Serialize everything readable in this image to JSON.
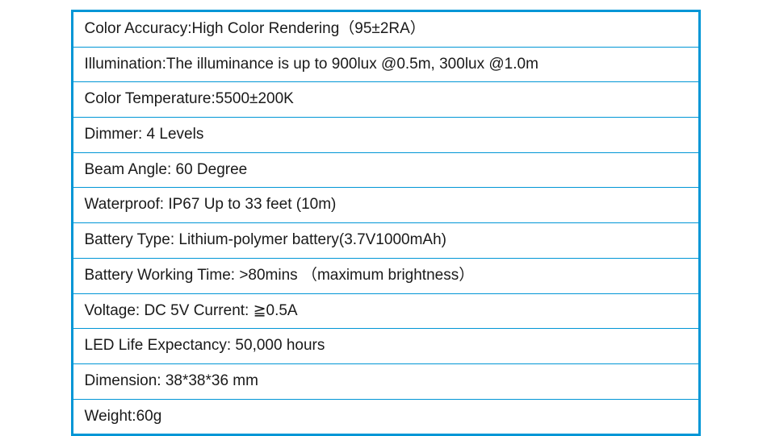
{
  "table": {
    "border_color": "#0096d6",
    "border_width": 3,
    "row_border_color": "#0096d6",
    "background_color": "#ffffff",
    "text_color": "#1a1a1a",
    "font_size": 19,
    "rows": [
      "Color Accuracy:High Color Rendering（95±2RA）",
      "Illumination:The illuminance is up to 900lux @0.5m, 300lux @1.0m",
      "Color Temperature:5500±200K",
      "Dimmer: 4 Levels",
      "Beam Angle: 60 Degree",
      "Waterproof: IP67 Up to 33 feet (10m)",
      "Battery Type: Lithium-polymer battery(3.7V1000mAh)",
      "Battery Working Time: >80mins （maximum brightness）",
      "Voltage: DC 5V  Current:  ≧0.5A",
      "LED Life Expectancy: 50,000 hours",
      "Dimension: 38*38*36 mm",
      "Weight:60g"
    ]
  }
}
